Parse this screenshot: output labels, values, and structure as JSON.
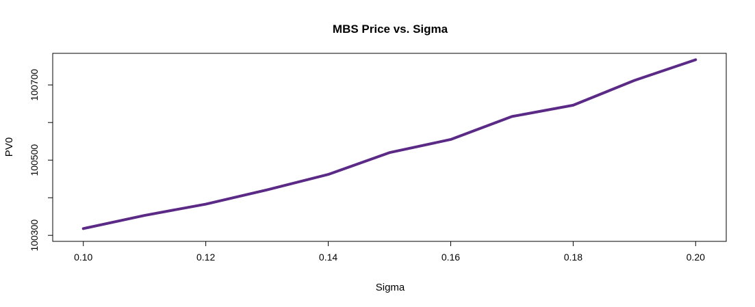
{
  "chart_data": {
    "type": "line",
    "title": "MBS Price vs. Sigma",
    "xlabel": "Sigma",
    "ylabel": "PV0",
    "xlim": [
      0.095,
      0.205
    ],
    "ylim": [
      100284,
      100784
    ],
    "xticks": [
      0.1,
      0.12,
      0.14,
      0.16,
      0.18,
      0.2
    ],
    "xtick_labels": [
      "0.10",
      "0.12",
      "0.14",
      "0.16",
      "0.18",
      "0.20"
    ],
    "yticks": [
      100300,
      100400,
      100500,
      100600,
      100700
    ],
    "ytick_labels": [
      "100300",
      "",
      "100500",
      "",
      "100700"
    ],
    "grid": false,
    "line_color": "#5b2a86",
    "series": [
      {
        "x": [
          0.1,
          0.11,
          0.12,
          0.13,
          0.14,
          0.15,
          0.16,
          0.17,
          0.18,
          0.19,
          0.2
        ],
        "values": [
          100318,
          100353,
          100383,
          100421,
          100462,
          100520,
          100555,
          100616,
          100646,
          100712,
          100767
        ]
      }
    ]
  }
}
